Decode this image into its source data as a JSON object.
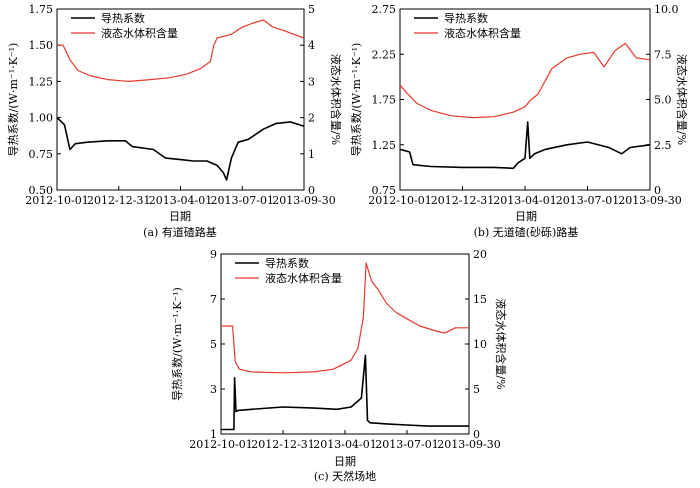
{
  "legend": {
    "k": "导热系数",
    "w": "液态水体积含量"
  },
  "colors": {
    "k": "#000000",
    "w": "#e8392a"
  },
  "chart_data": [
    {
      "type": "line",
      "caption": "(a) 有道碴路基",
      "xlabel": "日期",
      "ylabel_left": "导热系数/(W·m⁻¹·K⁻¹)",
      "ylabel_right": "液态水体积含量/%",
      "x_ticks": [
        "2012-10-01",
        "2012-12-31",
        "2013-04-01",
        "2013-07-01",
        "2013-09-30"
      ],
      "xlim": [
        "2012-10-01",
        "2013-09-30"
      ],
      "ylim_left": [
        0.5,
        1.75
      ],
      "ylim_right": [
        0,
        5
      ],
      "yticks_left": [
        "0.50",
        "0.75",
        "1.00",
        "1.25",
        "1.50",
        "1.75"
      ],
      "yticks_right": [
        "0",
        "1",
        "2",
        "3",
        "4",
        "5"
      ],
      "legend_position": "top-left",
      "series": [
        {
          "name": "导热系数",
          "axis": "left",
          "x": [
            "2012-10-01",
            "2012-10-12",
            "2012-10-20",
            "2012-10-28",
            "2012-11-15",
            "2012-12-15",
            "2013-01-10",
            "2013-01-20",
            "2013-02-20",
            "2013-03-10",
            "2013-04-01",
            "2013-04-20",
            "2013-05-10",
            "2013-05-25",
            "2013-06-03",
            "2013-06-08",
            "2013-06-15",
            "2013-06-25",
            "2013-07-10",
            "2013-08-01",
            "2013-08-20",
            "2013-09-10",
            "2013-09-30"
          ],
          "values": [
            1.0,
            0.95,
            0.78,
            0.82,
            0.83,
            0.84,
            0.84,
            0.8,
            0.78,
            0.72,
            0.71,
            0.7,
            0.7,
            0.67,
            0.62,
            0.57,
            0.72,
            0.83,
            0.85,
            0.92,
            0.96,
            0.97,
            0.94
          ]
        },
        {
          "name": "液态水体积含量",
          "axis": "right",
          "x": [
            "2012-10-01",
            "2012-10-10",
            "2012-10-20",
            "2012-11-01",
            "2012-11-20",
            "2012-12-15",
            "2013-01-15",
            "2013-02-15",
            "2013-03-15",
            "2013-04-10",
            "2013-04-30",
            "2013-05-15",
            "2013-05-20",
            "2013-05-25",
            "2013-06-15",
            "2013-07-01",
            "2013-07-15",
            "2013-08-01",
            "2013-08-15",
            "2013-09-01",
            "2013-09-15",
            "2013-09-30"
          ],
          "values": [
            4.0,
            4.0,
            3.6,
            3.3,
            3.15,
            3.05,
            3.0,
            3.05,
            3.1,
            3.2,
            3.35,
            3.55,
            4.0,
            4.2,
            4.3,
            4.5,
            4.6,
            4.7,
            4.5,
            4.4,
            4.3,
            4.2
          ]
        }
      ]
    },
    {
      "type": "line",
      "caption": "(b) 无道碴(砂砾)路基",
      "xlabel": "日期",
      "ylabel_left": "导热系数/(W·m⁻¹·K⁻¹)",
      "ylabel_right": "液态水体积含量/%",
      "x_ticks": [
        "2012-10-01",
        "2012-12-31",
        "2013-04-01",
        "2013-07-01",
        "2013-09-30"
      ],
      "xlim": [
        "2012-10-01",
        "2013-09-30"
      ],
      "ylim_left": [
        0.75,
        2.75
      ],
      "ylim_right": [
        0,
        10
      ],
      "yticks_left": [
        "0.75",
        "1.25",
        "1.75",
        "2.25",
        "2.75"
      ],
      "yticks_right": [
        "0",
        "2.5",
        "5.0",
        "7.5",
        "10.0"
      ],
      "legend_position": "top-left",
      "series": [
        {
          "name": "导热系数",
          "axis": "left",
          "x": [
            "2012-10-01",
            "2012-10-15",
            "2012-10-20",
            "2012-11-15",
            "2012-12-31",
            "2013-02-15",
            "2013-03-15",
            "2013-03-22",
            "2013-04-01",
            "2013-04-05",
            "2013-04-08",
            "2013-04-15",
            "2013-05-01",
            "2013-06-01",
            "2013-07-01",
            "2013-08-01",
            "2013-08-20",
            "2013-09-01",
            "2013-09-30"
          ],
          "values": [
            1.2,
            1.17,
            1.03,
            1.01,
            1.0,
            1.0,
            0.99,
            1.05,
            1.1,
            1.5,
            1.1,
            1.15,
            1.2,
            1.25,
            1.28,
            1.22,
            1.15,
            1.22,
            1.25
          ]
        },
        {
          "name": "液态水体积含量",
          "axis": "right",
          "x": [
            "2012-10-01",
            "2012-10-10",
            "2012-10-25",
            "2012-11-15",
            "2012-12-15",
            "2013-01-15",
            "2013-02-15",
            "2013-03-15",
            "2013-04-01",
            "2013-04-10",
            "2013-04-20",
            "2013-05-10",
            "2013-06-01",
            "2013-06-20",
            "2013-07-10",
            "2013-07-25",
            "2013-08-10",
            "2013-08-25",
            "2013-09-10",
            "2013-09-30"
          ],
          "values": [
            5.8,
            5.4,
            4.8,
            4.4,
            4.1,
            4.0,
            4.05,
            4.3,
            4.6,
            5.0,
            5.3,
            6.7,
            7.3,
            7.5,
            7.6,
            6.8,
            7.7,
            8.1,
            7.3,
            7.2
          ]
        }
      ]
    },
    {
      "type": "line",
      "caption": "(c) 天然场地",
      "xlabel": "日期",
      "ylabel_left": "导热系数/(W·m⁻¹·K⁻¹)",
      "ylabel_right": "液态水体积含量/%",
      "x_ticks": [
        "2012-10-01",
        "2012-12-31",
        "2013-04-01",
        "2013-07-01",
        "2013-09-30"
      ],
      "xlim": [
        "2012-10-01",
        "2013-09-30"
      ],
      "ylim_left": [
        1,
        9
      ],
      "ylim_right": [
        0,
        20
      ],
      "yticks_left": [
        "1",
        "3",
        "5",
        "7",
        "9"
      ],
      "yticks_right": [
        "0",
        "5",
        "10",
        "15",
        "20"
      ],
      "legend_position": "top-left",
      "series": [
        {
          "name": "导热系数",
          "axis": "left",
          "x": [
            "2012-10-01",
            "2012-10-20",
            "2012-10-21",
            "2012-10-23",
            "2012-10-26",
            "2012-11-15",
            "2012-12-31",
            "2013-02-15",
            "2013-03-20",
            "2013-04-10",
            "2013-04-25",
            "2013-05-01",
            "2013-05-04",
            "2013-05-08",
            "2013-06-01",
            "2013-07-01",
            "2013-08-01",
            "2013-09-30"
          ],
          "values": [
            1.2,
            1.2,
            3.5,
            2.0,
            2.05,
            2.1,
            2.2,
            2.15,
            2.1,
            2.2,
            2.6,
            4.5,
            1.6,
            1.5,
            1.45,
            1.4,
            1.35,
            1.35
          ]
        },
        {
          "name": "液态水体积含量",
          "axis": "right",
          "x": [
            "2012-10-01",
            "2012-10-18",
            "2012-10-22",
            "2012-10-28",
            "2012-11-15",
            "2012-12-31",
            "2013-02-15",
            "2013-03-15",
            "2013-04-10",
            "2013-04-20",
            "2013-04-28",
            "2013-05-02",
            "2013-05-10",
            "2013-05-20",
            "2013-06-01",
            "2013-06-15",
            "2013-07-01",
            "2013-07-20",
            "2013-08-10",
            "2013-08-25",
            "2013-09-10",
            "2013-09-30"
          ],
          "values": [
            12.0,
            12.0,
            8.0,
            7.2,
            6.9,
            6.8,
            6.9,
            7.2,
            8.2,
            9.5,
            13.0,
            19.0,
            17.0,
            16.0,
            14.5,
            13.5,
            12.8,
            12.0,
            11.5,
            11.2,
            11.8,
            11.8
          ]
        }
      ]
    }
  ]
}
